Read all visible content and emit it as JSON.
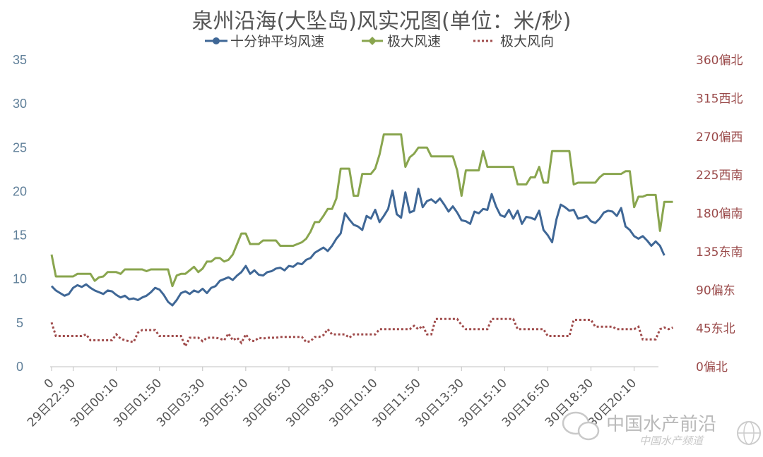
{
  "chart_data": {
    "type": "line",
    "title": "泉州沿海(大坠岛)风实况图(单位：米/秒)",
    "legend": {
      "placement": "top",
      "entries": [
        "十分钟平均风速",
        "极大风速",
        "极大风向"
      ]
    },
    "y_left": {
      "ylim": [
        0,
        35
      ],
      "ticks": [
        "0",
        "5",
        "10",
        "15",
        "20",
        "25",
        "30",
        "35"
      ]
    },
    "y_right": {
      "ylim": [
        0,
        360
      ],
      "ticks": [
        "0偏北",
        "45东北",
        "90偏东",
        "135东南",
        "180偏南",
        "225西南",
        "270偏西",
        "315西北",
        "360偏北"
      ]
    },
    "x_tick_labels": [
      "0",
      "29日22:30",
      "30日00:10",
      "30日01:50",
      "30日03:30",
      "30日05:10",
      "30日06:50",
      "30日08:30",
      "30日10:10",
      "30日11:50",
      "30日13:30",
      "30日15:10",
      "30日16:50",
      "30日18:30",
      "30日20:10"
    ],
    "x_tick_index": [
      0,
      5,
      15,
      25,
      35,
      45,
      55,
      65,
      75,
      85,
      95,
      105,
      115,
      125,
      135
    ],
    "x_max_index": 139,
    "grid": false,
    "colors": {
      "avg": "#3f6796",
      "max": "#89a54e",
      "dir": "#a04c4c"
    },
    "series": [
      {
        "name": "十分钟平均风速",
        "values": [
          9.2,
          8.7,
          8.4,
          8.1,
          8.3,
          9.0,
          9.3,
          9.1,
          9.4,
          9.0,
          8.7,
          8.5,
          8.3,
          8.7,
          8.6,
          8.2,
          7.9,
          8.1,
          7.7,
          7.8,
          7.6,
          7.9,
          8.1,
          8.5,
          9.0,
          8.8,
          8.2,
          7.4,
          7.0,
          7.6,
          8.4,
          8.6,
          8.3,
          8.7,
          8.5,
          8.9,
          8.4,
          9.0,
          9.2,
          9.8,
          10.0,
          10.2,
          9.9,
          10.4,
          10.8,
          11.5,
          10.6,
          11.0,
          10.5,
          10.4,
          10.8,
          10.9,
          11.2,
          11.3,
          11.0,
          11.5,
          11.4,
          11.8,
          11.7,
          12.2,
          12.4,
          13.0,
          13.3,
          13.6,
          13.2,
          13.8,
          14.6,
          15.2,
          17.5,
          16.8,
          16.2,
          16.0,
          15.6,
          17.2,
          16.9,
          17.9,
          16.5,
          17.2,
          18.0,
          20.1,
          17.4,
          17.0,
          19.9,
          17.6,
          17.8,
          20.3,
          18.2,
          18.9,
          19.1,
          18.7,
          19.2,
          18.5,
          17.7,
          18.3,
          17.6,
          16.7,
          16.6,
          16.3,
          17.7,
          17.5,
          18.0,
          17.9,
          19.7,
          18.3,
          17.3,
          17.1,
          17.9,
          16.9,
          17.8,
          16.3,
          17.1,
          17.0,
          16.8,
          17.8,
          15.6,
          15.0,
          14.2,
          16.8,
          18.5,
          18.2,
          17.8,
          17.9,
          16.9,
          17.0,
          17.2,
          16.6,
          16.4,
          16.9,
          17.6,
          17.8,
          17.7,
          17.2,
          18.1,
          16.0,
          15.6,
          14.9,
          14.6,
          14.9,
          14.4,
          13.8,
          14.3,
          13.8,
          12.7
        ],
        "note": ""
      },
      {
        "name": "极大风速",
        "values": [
          12.8,
          10.3,
          10.3,
          10.3,
          10.3,
          10.3,
          10.6,
          10.6,
          10.6,
          10.6,
          9.8,
          10.2,
          10.3,
          10.8,
          10.8,
          10.8,
          10.6,
          11.1,
          11.1,
          11.1,
          11.1,
          11.1,
          10.9,
          11.1,
          11.1,
          11.1,
          11.1,
          11.1,
          9.2,
          10.4,
          10.6,
          10.6,
          11.0,
          11.4,
          10.8,
          11.2,
          12.0,
          12.0,
          12.4,
          12.4,
          12.0,
          12.2,
          12.8,
          14.0,
          15.2,
          15.2,
          14.0,
          14.0,
          14.0,
          14.4,
          14.4,
          14.4,
          14.4,
          13.8,
          13.8,
          13.8,
          13.8,
          14.0,
          14.2,
          14.6,
          15.4,
          16.5,
          16.5,
          17.2,
          18.0,
          18.0,
          19.2,
          22.6,
          22.6,
          22.6,
          19.5,
          19.5,
          22.0,
          22.0,
          22.0,
          22.6,
          24.2,
          26.5,
          26.5,
          26.5,
          26.5,
          26.5,
          22.8,
          23.9,
          24.3,
          25.0,
          25.0,
          25.0,
          24.0,
          24.0,
          24.0,
          24.0,
          24.0,
          24.0,
          22.4,
          19.5,
          22.4,
          22.4,
          22.4,
          22.4,
          24.6,
          22.8,
          22.8,
          22.8,
          22.8,
          22.8,
          22.8,
          22.8,
          20.8,
          20.8,
          20.8,
          21.6,
          21.6,
          22.8,
          21.0,
          21.0,
          24.6,
          24.6,
          24.6,
          24.6,
          24.6,
          20.8,
          21.0,
          21.0,
          21.0,
          21.0,
          21.0,
          21.6,
          22.0,
          22.0,
          22.0,
          22.0,
          22.0,
          22.3,
          22.3,
          18.2,
          19.4,
          19.4,
          19.6,
          19.6,
          19.6,
          15.5,
          18.8,
          18.8,
          18.8
        ],
        "note": ""
      },
      {
        "name": "极大风向",
        "values": [
          52,
          36,
          36,
          36,
          36,
          36,
          36,
          36,
          38,
          31,
          31,
          31,
          31,
          31,
          31,
          38,
          33,
          31,
          30,
          29,
          40,
          43,
          43,
          43,
          43,
          36,
          36,
          36,
          36,
          36,
          36,
          24,
          34,
          34,
          34,
          30,
          34,
          34,
          34,
          33,
          31,
          39,
          31,
          34,
          28,
          38,
          31,
          30,
          34,
          33,
          34,
          34,
          34,
          35,
          35,
          35,
          35,
          35,
          35,
          29,
          30,
          35,
          35,
          37,
          44,
          38,
          38,
          38,
          38,
          34,
          38,
          38,
          38,
          38,
          38,
          38,
          44,
          44,
          44,
          44,
          44,
          44,
          44,
          44,
          48,
          44,
          48,
          38,
          38,
          56,
          56,
          56,
          56,
          56,
          56,
          49,
          44,
          44,
          44,
          44,
          44,
          44,
          56,
          56,
          56,
          56,
          56,
          56,
          44,
          44,
          44,
          44,
          44,
          44,
          44,
          36,
          36,
          36,
          36,
          36,
          36,
          55,
          55,
          55,
          55,
          55,
          47,
          47,
          47,
          47,
          47,
          44,
          44,
          44,
          44,
          44,
          47,
          32,
          32,
          32,
          32,
          44,
          46,
          44,
          46
        ],
        "note": ""
      }
    ]
  },
  "watermark": {
    "text": "中国水产前沿",
    "subtext": "中国水产频道"
  }
}
